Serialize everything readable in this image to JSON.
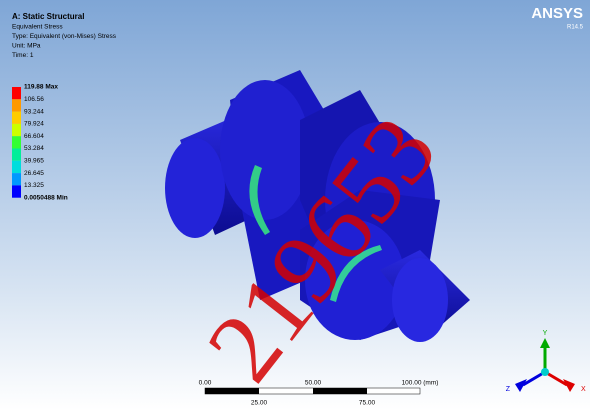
{
  "header": {
    "title": "A: Static Structural",
    "lines": [
      "Equivalent Stress",
      "Type: Equivalent (von-Mises) Stress",
      "Unit: MPa",
      "Time: 1"
    ]
  },
  "legend": {
    "labels": [
      "119.88 Max",
      "106.56",
      "93.244",
      "79.924",
      "66.604",
      "53.284",
      "39.965",
      "26.645",
      "13.325",
      "0.0050488 Min"
    ]
  },
  "brand": {
    "name": "ANSYS",
    "version": "R14.5"
  },
  "scale_bar": {
    "top_labels": [
      "0.00",
      "50.00",
      "100.00 (mm)"
    ],
    "bottom_labels": [
      "25.00",
      "75.00"
    ]
  },
  "triad": {
    "x": "X",
    "y": "Y",
    "z": "Z"
  },
  "watermark": "219653"
}
